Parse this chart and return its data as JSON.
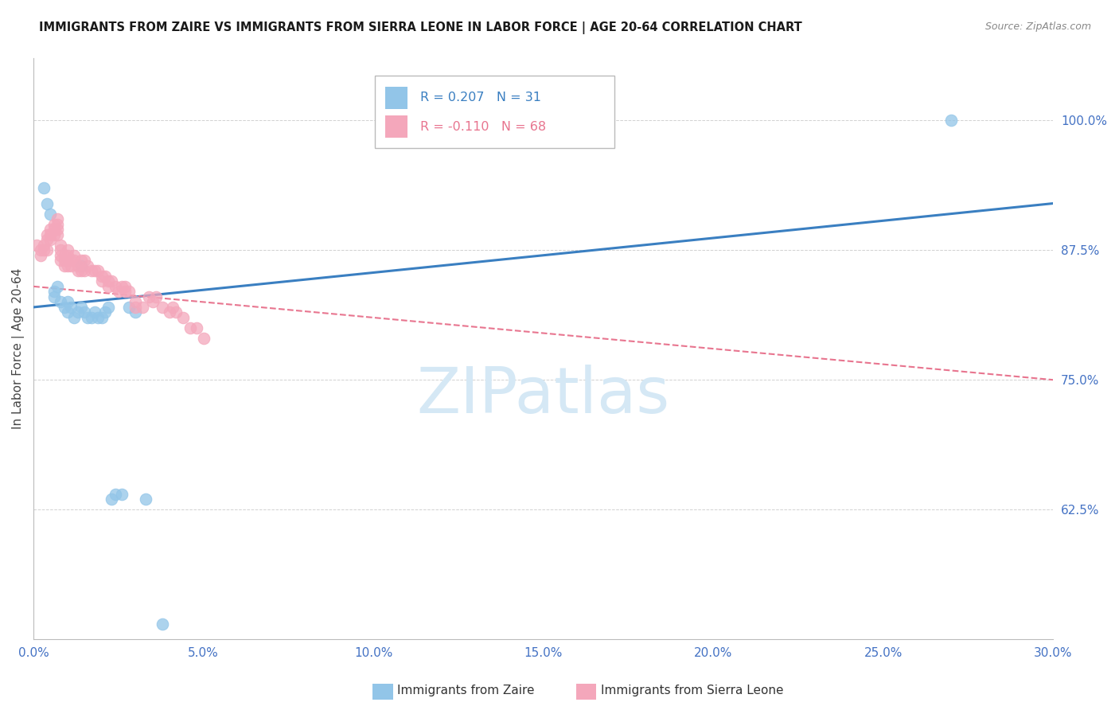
{
  "title": "IMMIGRANTS FROM ZAIRE VS IMMIGRANTS FROM SIERRA LEONE IN LABOR FORCE | AGE 20-64 CORRELATION CHART",
  "source": "Source: ZipAtlas.com",
  "ylabel": "In Labor Force | Age 20-64",
  "xlim": [
    0.0,
    0.3
  ],
  "ylim": [
    0.5,
    1.06
  ],
  "xtick_labels": [
    "0.0%",
    "5.0%",
    "10.0%",
    "15.0%",
    "20.0%",
    "25.0%",
    "30.0%"
  ],
  "xtick_values": [
    0.0,
    0.05,
    0.1,
    0.15,
    0.2,
    0.25,
    0.3
  ],
  "ytick_labels": [
    "62.5%",
    "75.0%",
    "87.5%",
    "100.0%"
  ],
  "ytick_values": [
    0.625,
    0.75,
    0.875,
    1.0
  ],
  "R_zaire": 0.207,
  "N_zaire": 31,
  "R_sierra": -0.11,
  "N_sierra": 68,
  "blue_color": "#92C5E8",
  "pink_color": "#F4A7BB",
  "blue_line_color": "#3A7FC1",
  "pink_line_color": "#E8758F",
  "axis_color": "#4472C4",
  "title_color": "#1a1a1a",
  "source_color": "#888888",
  "ylabel_color": "#444444",
  "watermark": "ZIPatlas",
  "watermark_color": "#D5E8F5",
  "background_color": "#ffffff",
  "grid_color": "#cccccc",
  "legend_edge_color": "#bbbbbb",
  "zaire_x": [
    0.003,
    0.004,
    0.005,
    0.006,
    0.006,
    0.007,
    0.008,
    0.009,
    0.01,
    0.01,
    0.011,
    0.012,
    0.013,
    0.014,
    0.015,
    0.016,
    0.017,
    0.018,
    0.019,
    0.02,
    0.021,
    0.022,
    0.024,
    0.026,
    0.028,
    0.03,
    0.033,
    0.27,
    0.014,
    0.023,
    0.038
  ],
  "zaire_y": [
    0.935,
    0.92,
    0.91,
    0.83,
    0.835,
    0.84,
    0.825,
    0.82,
    0.825,
    0.815,
    0.82,
    0.81,
    0.815,
    0.82,
    0.815,
    0.81,
    0.81,
    0.815,
    0.81,
    0.81,
    0.815,
    0.82,
    0.64,
    0.64,
    0.82,
    0.815,
    0.635,
    1.0,
    0.86,
    0.635,
    0.515
  ],
  "sierra_x": [
    0.001,
    0.002,
    0.002,
    0.003,
    0.003,
    0.004,
    0.004,
    0.004,
    0.005,
    0.005,
    0.005,
    0.006,
    0.006,
    0.006,
    0.007,
    0.007,
    0.007,
    0.007,
    0.008,
    0.008,
    0.008,
    0.008,
    0.009,
    0.009,
    0.009,
    0.01,
    0.01,
    0.01,
    0.011,
    0.011,
    0.012,
    0.012,
    0.013,
    0.013,
    0.014,
    0.014,
    0.015,
    0.015,
    0.016,
    0.017,
    0.018,
    0.019,
    0.02,
    0.02,
    0.021,
    0.022,
    0.022,
    0.023,
    0.024,
    0.025,
    0.026,
    0.027,
    0.027,
    0.028,
    0.03,
    0.03,
    0.032,
    0.034,
    0.035,
    0.036,
    0.038,
    0.04,
    0.041,
    0.042,
    0.044,
    0.046,
    0.048,
    0.05
  ],
  "sierra_y": [
    0.88,
    0.875,
    0.87,
    0.88,
    0.875,
    0.89,
    0.885,
    0.875,
    0.895,
    0.89,
    0.885,
    0.9,
    0.895,
    0.89,
    0.905,
    0.9,
    0.895,
    0.89,
    0.88,
    0.875,
    0.87,
    0.865,
    0.87,
    0.865,
    0.86,
    0.875,
    0.87,
    0.86,
    0.865,
    0.86,
    0.87,
    0.865,
    0.855,
    0.86,
    0.865,
    0.855,
    0.865,
    0.855,
    0.86,
    0.855,
    0.855,
    0.855,
    0.85,
    0.845,
    0.85,
    0.845,
    0.84,
    0.845,
    0.84,
    0.835,
    0.84,
    0.835,
    0.84,
    0.835,
    0.82,
    0.825,
    0.82,
    0.83,
    0.825,
    0.83,
    0.82,
    0.815,
    0.82,
    0.815,
    0.81,
    0.8,
    0.8,
    0.79
  ]
}
